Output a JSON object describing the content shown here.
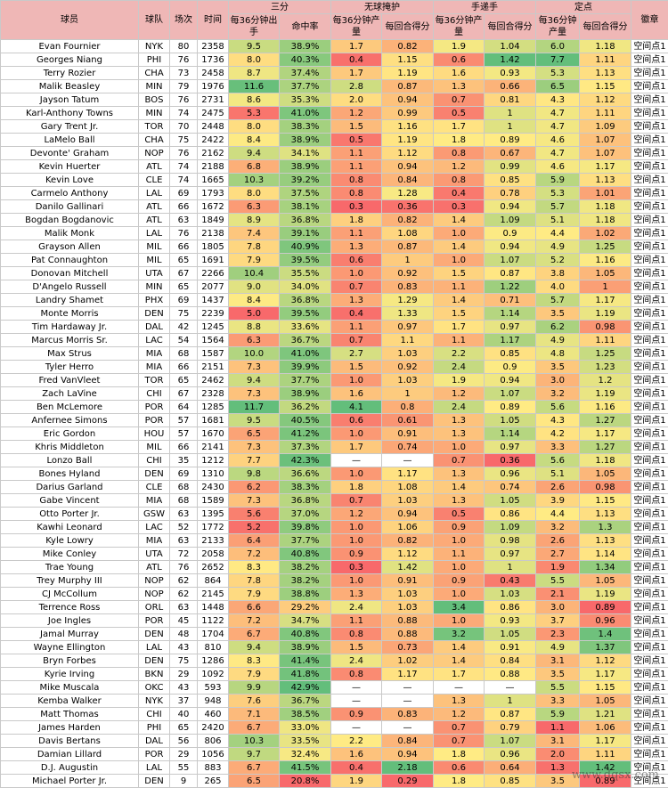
{
  "header": {
    "player": "球员",
    "team": "球队",
    "games": "场次",
    "minutes": "时间",
    "group_three": "三分",
    "group_open": "无球掩护",
    "group_handoff": "手递手",
    "group_spot": "定点",
    "badge": "徽章",
    "sub_fga36": "每36分钟出手",
    "sub_pct": "命中率",
    "sub_pts36": "每36分钟产量",
    "sub_ppp": "每回合得分"
  },
  "colors": {
    "header_bg": "#efb7b6",
    "green": "#63be7b",
    "yellow": "#ffeb84",
    "red": "#f8696b"
  },
  "scales": {
    "fga36": [
      5.0,
      11.7
    ],
    "pct": [
      20.8,
      42.9
    ],
    "open_pts": [
      0.3,
      4.1
    ],
    "open_ppp": [
      0.29,
      2.18
    ],
    "hand_pts": [
      0.2,
      3.4
    ],
    "hand_ppp": [
      0.36,
      1.42
    ],
    "spot_pts": [
      1.1,
      7.7
    ],
    "spot_ppp": [
      0.89,
      1.42
    ]
  },
  "rows": [
    [
      "Evan Fournier",
      "NYK",
      "80",
      "2358",
      "9.5",
      "38.9%",
      "1.7",
      "0.82",
      "1.9",
      "1.04",
      "6.0",
      "1.18",
      "空间点1"
    ],
    [
      "Georges Niang",
      "PHI",
      "76",
      "1736",
      "8.0",
      "40.3%",
      "0.4",
      "1.15",
      "0.6",
      "1.42",
      "7.7",
      "1.11",
      "空间点1"
    ],
    [
      "Terry Rozier",
      "CHA",
      "73",
      "2458",
      "8.7",
      "37.4%",
      "1.7",
      "1.19",
      "1.6",
      "0.93",
      "5.3",
      "1.13",
      "空间点1"
    ],
    [
      "Malik Beasley",
      "MIN",
      "79",
      "1976",
      "11.6",
      "37.7%",
      "2.8",
      "0.87",
      "1.3",
      "0.66",
      "6.5",
      "1.15",
      "空间点1"
    ],
    [
      "Jayson Tatum",
      "BOS",
      "76",
      "2731",
      "8.6",
      "35.3%",
      "2.0",
      "0.94",
      "0.7",
      "0.81",
      "4.3",
      "1.12",
      "空间点1"
    ],
    [
      "Karl-Anthony Towns",
      "MIN",
      "74",
      "2475",
      "5.3",
      "41.0%",
      "1.2",
      "0.99",
      "0.5",
      "1",
      "4.7",
      "1.11",
      "空间点1"
    ],
    [
      "Gary Trent Jr.",
      "TOR",
      "70",
      "2448",
      "8.0",
      "38.3%",
      "1.5",
      "1.16",
      "1.7",
      "1",
      "4.7",
      "1.09",
      "空间点1"
    ],
    [
      "LaMelo Ball",
      "CHA",
      "75",
      "2422",
      "8.4",
      "38.9%",
      "0.5",
      "1.19",
      "1.8",
      "0.89",
      "4.6",
      "1.07",
      "空间点1"
    ],
    [
      "Devonte' Graham",
      "NOP",
      "76",
      "2162",
      "9.4",
      "34.1%",
      "1.1",
      "1.12",
      "0.8",
      "0.67",
      "4.7",
      "1.07",
      "空间点1"
    ],
    [
      "Kevin Huerter",
      "ATL",
      "74",
      "2188",
      "6.8",
      "38.9%",
      "1.1",
      "0.94",
      "1.2",
      "0.99",
      "4.6",
      "1.17",
      "空间点1"
    ],
    [
      "Kevin Love",
      "CLE",
      "74",
      "1665",
      "10.3",
      "39.2%",
      "0.8",
      "0.84",
      "0.8",
      "0.85",
      "5.9",
      "1.13",
      "空间点1"
    ],
    [
      "Carmelo Anthony",
      "LAL",
      "69",
      "1793",
      "8.0",
      "37.5%",
      "0.8",
      "1.28",
      "0.4",
      "0.78",
      "5.3",
      "1.01",
      "空间点1"
    ],
    [
      "Danilo Gallinari",
      "ATL",
      "66",
      "1672",
      "6.3",
      "38.1%",
      "0.3",
      "0.36",
      "0.3",
      "0.94",
      "5.7",
      "1.18",
      "空间点1"
    ],
    [
      "Bogdan Bogdanovic",
      "ATL",
      "63",
      "1849",
      "8.9",
      "36.8%",
      "1.8",
      "0.82",
      "1.4",
      "1.09",
      "5.1",
      "1.18",
      "空间点1"
    ],
    [
      "Malik Monk",
      "LAL",
      "76",
      "2138",
      "7.4",
      "39.1%",
      "1.1",
      "1.08",
      "1.0",
      "0.9",
      "4.4",
      "1.02",
      "空间点1"
    ],
    [
      "Grayson Allen",
      "MIL",
      "66",
      "1805",
      "7.8",
      "40.9%",
      "1.3",
      "0.87",
      "1.4",
      "0.94",
      "4.9",
      "1.25",
      "空间点1"
    ],
    [
      "Pat Connaughton",
      "MIL",
      "65",
      "1691",
      "7.9",
      "39.5%",
      "0.6",
      "1",
      "1.0",
      "1.07",
      "5.2",
      "1.16",
      "空间点1"
    ],
    [
      "Donovan Mitchell",
      "UTA",
      "67",
      "2266",
      "10.4",
      "35.5%",
      "1.0",
      "0.92",
      "1.5",
      "0.87",
      "3.8",
      "1.05",
      "空间点1"
    ],
    [
      "D'Angelo Russell",
      "MIN",
      "65",
      "2077",
      "9.0",
      "34.0%",
      "0.7",
      "0.83",
      "1.1",
      "1.22",
      "4.0",
      "1",
      "空间点1"
    ],
    [
      "Landry Shamet",
      "PHX",
      "69",
      "1437",
      "8.4",
      "36.8%",
      "1.3",
      "1.29",
      "1.4",
      "0.71",
      "5.7",
      "1.17",
      "空间点1"
    ],
    [
      "Monte Morris",
      "DEN",
      "75",
      "2239",
      "5.0",
      "39.5%",
      "0.4",
      "1.33",
      "1.5",
      "1.14",
      "3.5",
      "1.19",
      "空间点1"
    ],
    [
      "Tim Hardaway Jr.",
      "DAL",
      "42",
      "1245",
      "8.8",
      "33.6%",
      "1.1",
      "0.97",
      "1.7",
      "0.97",
      "6.2",
      "0.98",
      "空间点1"
    ],
    [
      "Marcus Morris Sr.",
      "LAC",
      "54",
      "1564",
      "6.3",
      "36.7%",
      "0.7",
      "1.1",
      "1.1",
      "1.17",
      "4.9",
      "1.11",
      "空间点1"
    ],
    [
      "Max Strus",
      "MIA",
      "68",
      "1587",
      "10.0",
      "41.0%",
      "2.7",
      "1.03",
      "2.2",
      "0.85",
      "4.8",
      "1.25",
      "空间点1"
    ],
    [
      "Tyler Herro",
      "MIA",
      "66",
      "2151",
      "7.3",
      "39.9%",
      "1.5",
      "0.92",
      "2.4",
      "0.9",
      "3.5",
      "1.23",
      "空间点1"
    ],
    [
      "Fred VanVleet",
      "TOR",
      "65",
      "2462",
      "9.4",
      "37.7%",
      "1.0",
      "1.03",
      "1.9",
      "0.94",
      "3.0",
      "1.2",
      "空间点1"
    ],
    [
      "Zach LaVine",
      "CHI",
      "67",
      "2328",
      "7.3",
      "38.9%",
      "1.6",
      "1",
      "1.2",
      "1.07",
      "3.2",
      "1.19",
      "空间点1"
    ],
    [
      "Ben McLemore",
      "POR",
      "64",
      "1285",
      "11.7",
      "36.2%",
      "4.1",
      "0.8",
      "2.4",
      "0.89",
      "5.6",
      "1.16",
      "空间点1"
    ],
    [
      "Anfernee Simons",
      "POR",
      "57",
      "1681",
      "9.5",
      "40.5%",
      "0.6",
      "0.61",
      "1.3",
      "1.05",
      "4.3",
      "1.27",
      "空间点1"
    ],
    [
      "Eric Gordon",
      "HOU",
      "57",
      "1670",
      "6.5",
      "41.2%",
      "1.0",
      "0.91",
      "1.3",
      "1.14",
      "4.2",
      "1.17",
      "空间点1"
    ],
    [
      "Khris Middleton",
      "MIL",
      "66",
      "2141",
      "7.3",
      "37.3%",
      "1.7",
      "0.74",
      "1.0",
      "0.97",
      "3.3",
      "1.27",
      "空间点1"
    ],
    [
      "Lonzo Ball",
      "CHI",
      "35",
      "1212",
      "7.7",
      "42.3%",
      "—",
      "—",
      "0.7",
      "0.36",
      "5.6",
      "1.18",
      "空间点1"
    ],
    [
      "Bones Hyland",
      "DEN",
      "69",
      "1310",
      "9.8",
      "36.6%",
      "1.0",
      "1.17",
      "1.3",
      "0.96",
      "5.1",
      "1.05",
      "空间点1"
    ],
    [
      "Darius Garland",
      "CLE",
      "68",
      "2430",
      "6.2",
      "38.3%",
      "1.8",
      "1.08",
      "1.4",
      "0.74",
      "2.6",
      "0.98",
      "空间点1"
    ],
    [
      "Gabe Vincent",
      "MIA",
      "68",
      "1589",
      "7.3",
      "36.8%",
      "0.7",
      "1.03",
      "1.3",
      "1.05",
      "3.9",
      "1.15",
      "空间点1"
    ],
    [
      "Otto Porter Jr.",
      "GSW",
      "63",
      "1395",
      "5.6",
      "37.0%",
      "1.2",
      "0.94",
      "0.5",
      "0.86",
      "4.4",
      "1.13",
      "空间点1"
    ],
    [
      "Kawhi Leonard",
      "LAC",
      "52",
      "1772",
      "5.2",
      "39.8%",
      "1.0",
      "1.06",
      "0.9",
      "1.09",
      "3.2",
      "1.3",
      "空间点1"
    ],
    [
      "Kyle Lowry",
      "MIA",
      "63",
      "2133",
      "6.4",
      "37.7%",
      "1.0",
      "0.82",
      "1.0",
      "0.98",
      "2.6",
      "1.13",
      "空间点1"
    ],
    [
      "Mike Conley",
      "UTA",
      "72",
      "2058",
      "7.2",
      "40.8%",
      "0.9",
      "1.12",
      "1.1",
      "0.97",
      "2.7",
      "1.14",
      "空间点1"
    ],
    [
      "Trae Young",
      "ATL",
      "76",
      "2652",
      "8.3",
      "38.2%",
      "0.3",
      "1.42",
      "1.0",
      "1",
      "1.9",
      "1.34",
      "空间点1"
    ],
    [
      "Trey Murphy III",
      "NOP",
      "62",
      "864",
      "7.8",
      "38.2%",
      "1.0",
      "0.91",
      "0.9",
      "0.43",
      "5.5",
      "1.05",
      "空间点1"
    ],
    [
      "CJ McCollum",
      "NOP",
      "62",
      "2145",
      "7.9",
      "38.8%",
      "1.3",
      "1.03",
      "1.0",
      "1.03",
      "2.1",
      "1.19",
      "空间点1"
    ],
    [
      "Terrence Ross",
      "ORL",
      "63",
      "1448",
      "6.6",
      "29.2%",
      "2.4",
      "1.03",
      "3.4",
      "0.86",
      "3.0",
      "0.89",
      "空间点1"
    ],
    [
      "Joe Ingles",
      "POR",
      "45",
      "1122",
      "7.2",
      "34.7%",
      "1.1",
      "0.88",
      "1.0",
      "0.93",
      "3.7",
      "0.96",
      "空间点1"
    ],
    [
      "Jamal Murray",
      "DEN",
      "48",
      "1704",
      "6.7",
      "40.8%",
      "0.8",
      "0.88",
      "3.2",
      "1.05",
      "2.3",
      "1.4",
      "空间点1"
    ],
    [
      "Wayne Ellington",
      "LAL",
      "43",
      "810",
      "9.4",
      "38.9%",
      "1.5",
      "0.73",
      "1.4",
      "0.91",
      "4.9",
      "1.37",
      "空间点1"
    ],
    [
      "Bryn Forbes",
      "DEN",
      "75",
      "1286",
      "8.3",
      "41.4%",
      "2.4",
      "1.02",
      "1.4",
      "0.84",
      "3.1",
      "1.12",
      "空间点1"
    ],
    [
      "Kyrie Irving",
      "BKN",
      "29",
      "1092",
      "7.9",
      "41.8%",
      "0.8",
      "1.17",
      "1.7",
      "0.88",
      "3.5",
      "1.17",
      "空间点1"
    ],
    [
      "Mike Muscala",
      "OKC",
      "43",
      "593",
      "9.9",
      "42.9%",
      "—",
      "—",
      "—",
      "—",
      "5.5",
      "1.15",
      "空间点1"
    ],
    [
      "Kemba Walker",
      "NYK",
      "37",
      "948",
      "7.6",
      "36.7%",
      "—",
      "—",
      "1.3",
      "1",
      "3.3",
      "1.05",
      "空间点1"
    ],
    [
      "Matt Thomas",
      "CHI",
      "40",
      "460",
      "7.1",
      "38.5%",
      "0.9",
      "0.83",
      "1.2",
      "0.87",
      "5.9",
      "1.21",
      "空间点1"
    ],
    [
      "James Harden",
      "PHI",
      "65",
      "2420",
      "6.7",
      "33.0%",
      "—",
      "—",
      "0.7",
      "0.79",
      "1.1",
      "1.06",
      "空间点1"
    ],
    [
      "Davis Bertans",
      "DAL",
      "56",
      "806",
      "10.3",
      "33.5%",
      "2.2",
      "0.84",
      "0.7",
      "1.07",
      "3.1",
      "1.17",
      "空间点1"
    ],
    [
      "Damian Lillard",
      "POR",
      "29",
      "1056",
      "9.7",
      "32.4%",
      "1.6",
      "0.94",
      "1.8",
      "0.96",
      "2.0",
      "1.11",
      "空间点1"
    ],
    [
      "D.J. Augustin",
      "LAL",
      "55",
      "883",
      "6.7",
      "41.5%",
      "0.4",
      "2.18",
      "0.6",
      "0.64",
      "1.3",
      "1.42",
      "空间点1"
    ],
    [
      "Michael Porter Jr.",
      "DEN",
      "9",
      "265",
      "6.5",
      "20.8%",
      "1.9",
      "0.29",
      "1.8",
      "0.85",
      "3.5",
      "0.89",
      "空间点1"
    ]
  ],
  "watermark": "www.dqsx.com"
}
